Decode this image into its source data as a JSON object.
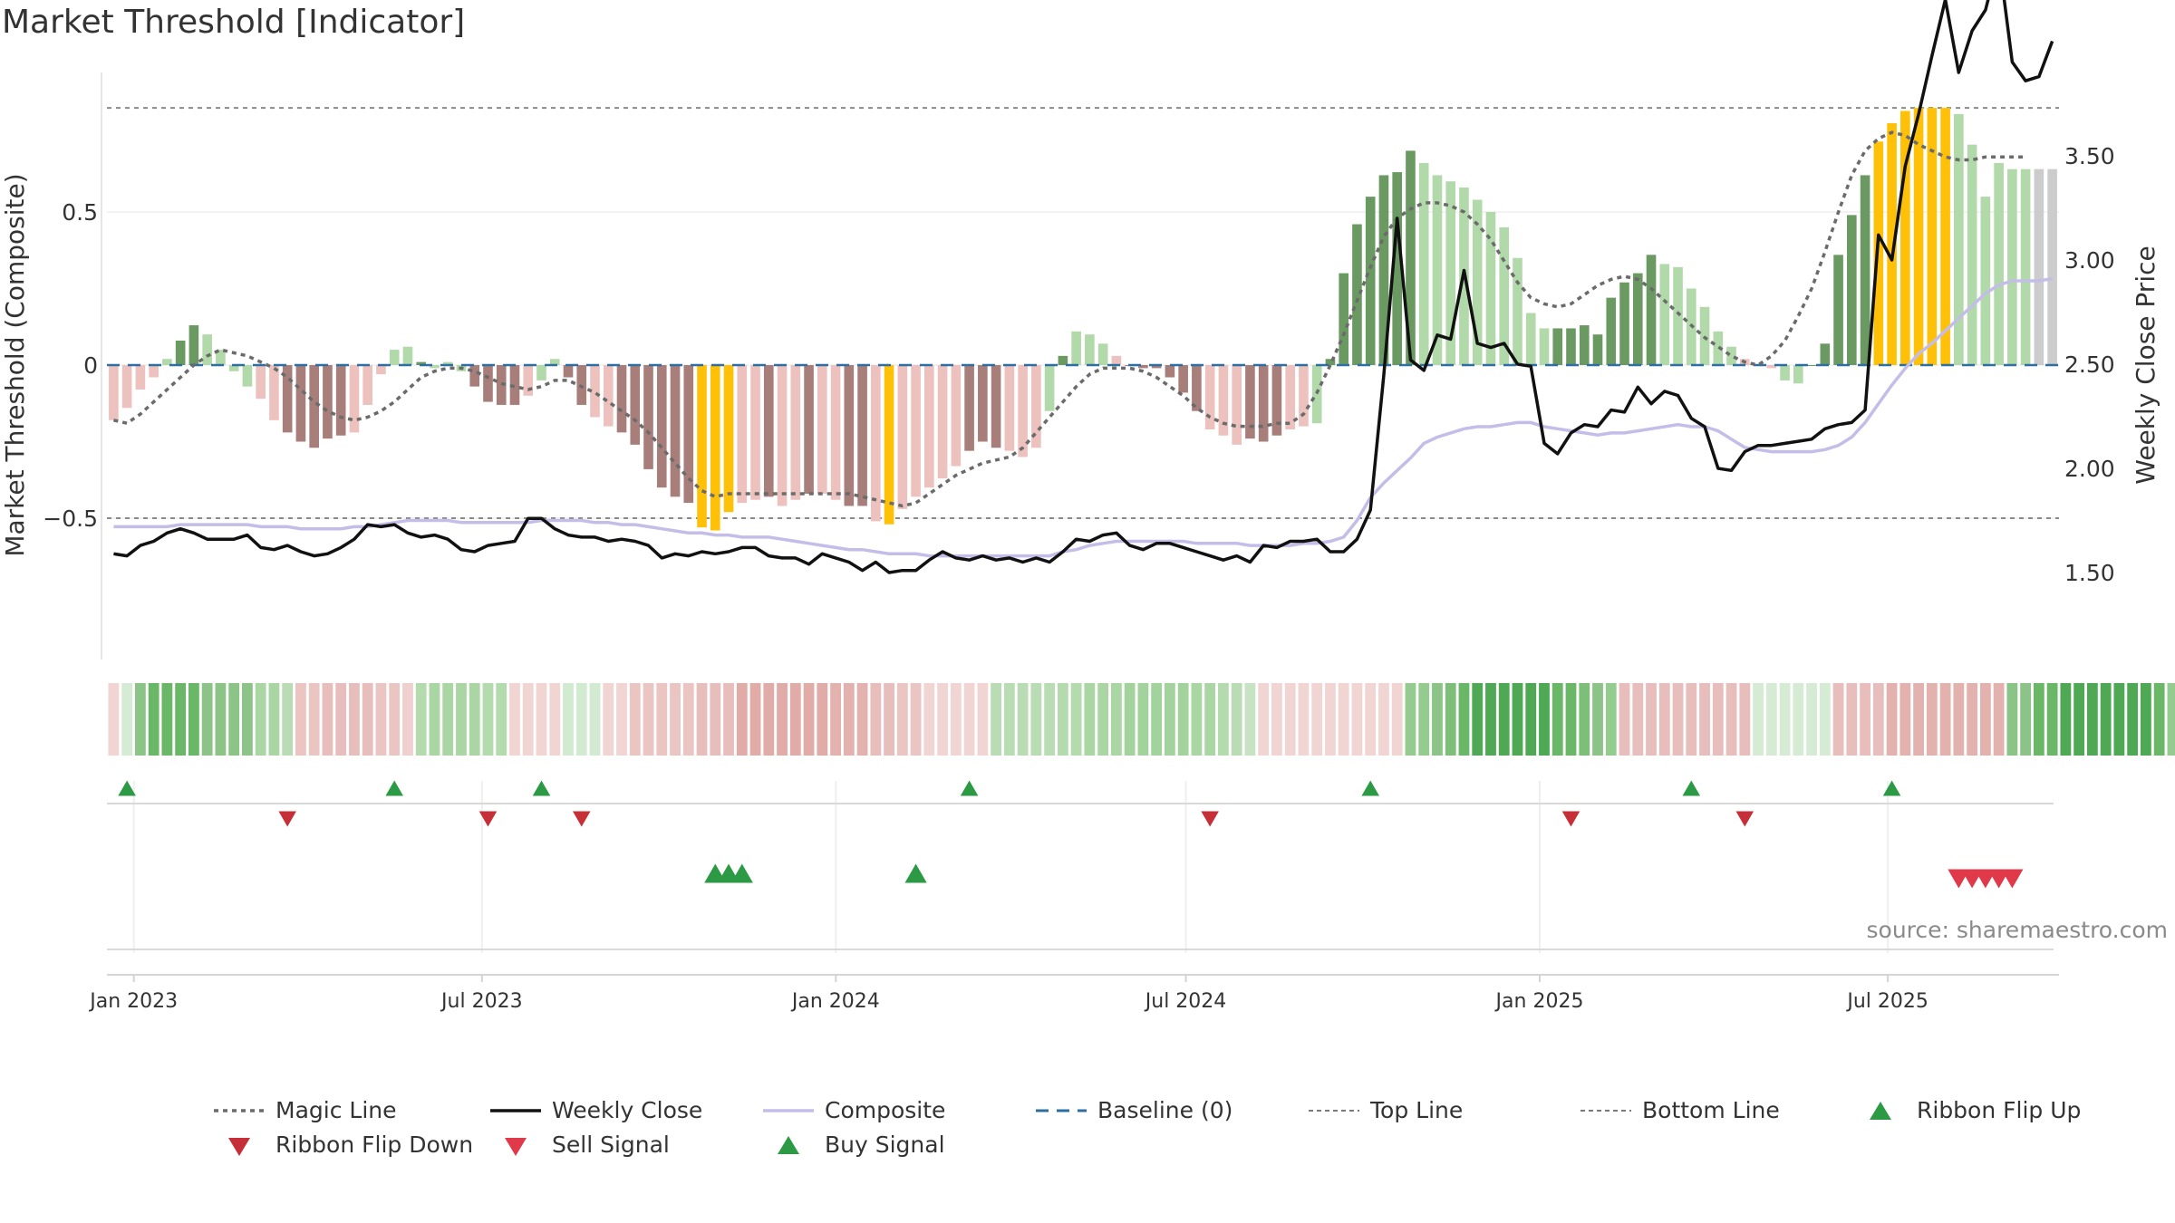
{
  "title": "Market Threshold [Indicator]",
  "source": "source: sharemaestro.com",
  "colors": {
    "bull_dark": "#6a9a62",
    "bull_light": "#b1d9a9",
    "bear_dark": "#a87e7b",
    "bear_light": "#ecc1be",
    "extreme": "#ffc107",
    "magic": "#6b6b6b",
    "close": "#111111",
    "composite": "#c3bde8",
    "baseline": "#2e6ea0",
    "buy": "#2c9a45",
    "sell": "#d23741"
  },
  "chart_data": {
    "type": "bar",
    "ylabel_left": "Market Threshold (Composite)",
    "ylabel_right": "Weekly Close Price",
    "y_left_ticks": [
      "0.5",
      "0",
      "−0.5"
    ],
    "y_left_tick_values": [
      0.5,
      0,
      -0.5
    ],
    "y_right_ticks": [
      "3.50",
      "3.00",
      "2.50",
      "2.00",
      "1.50"
    ],
    "y_right_tick_values": [
      3.5,
      3.0,
      2.5,
      2.0,
      1.5
    ],
    "ylim_left": [
      -0.95,
      0.95
    ],
    "ylim_right": [
      1.05,
      3.85
    ],
    "x_ticks": [
      "Jan 2023",
      "Jul 2023",
      "Jan 2024",
      "Jul 2024",
      "Jan 2025",
      "Jul 2025"
    ],
    "x_tick_dates": [
      "2023-01-01",
      "2023-07-01",
      "2024-01-01",
      "2024-07-01",
      "2025-01-01",
      "2025-07-01"
    ],
    "x_range": [
      "2022-12-18",
      "2025-09-28"
    ],
    "weeks": 146,
    "top_line": 0.84,
    "bottom_line": -0.5,
    "baseline": 0,
    "magic_line": [
      -0.18,
      -0.19,
      -0.16,
      -0.12,
      -0.08,
      -0.04,
      0.0,
      0.03,
      0.05,
      0.04,
      0.03,
      0.01,
      -0.01,
      -0.04,
      -0.08,
      -0.12,
      -0.15,
      -0.17,
      -0.18,
      -0.17,
      -0.15,
      -0.12,
      -0.08,
      -0.04,
      -0.02,
      -0.01,
      -0.01,
      -0.02,
      -0.04,
      -0.06,
      -0.07,
      -0.08,
      -0.07,
      -0.05,
      -0.05,
      -0.07,
      -0.09,
      -0.12,
      -0.15,
      -0.18,
      -0.22,
      -0.27,
      -0.32,
      -0.37,
      -0.41,
      -0.43,
      -0.42,
      -0.42,
      -0.42,
      -0.42,
      -0.42,
      -0.42,
      -0.42,
      -0.42,
      -0.42,
      -0.42,
      -0.43,
      -0.44,
      -0.45,
      -0.46,
      -0.45,
      -0.42,
      -0.39,
      -0.36,
      -0.34,
      -0.32,
      -0.31,
      -0.3,
      -0.27,
      -0.22,
      -0.17,
      -0.12,
      -0.07,
      -0.03,
      -0.01,
      -0.01,
      -0.01,
      -0.02,
      -0.04,
      -0.07,
      -0.1,
      -0.14,
      -0.17,
      -0.19,
      -0.2,
      -0.2,
      -0.2,
      -0.19,
      -0.19,
      -0.16,
      -0.09,
      0.0,
      0.1,
      0.21,
      0.32,
      0.42,
      0.48,
      0.51,
      0.53,
      0.53,
      0.52,
      0.5,
      0.46,
      0.41,
      0.34,
      0.27,
      0.22,
      0.2,
      0.19,
      0.2,
      0.23,
      0.26,
      0.28,
      0.29,
      0.28,
      0.25,
      0.21,
      0.17,
      0.13,
      0.09,
      0.06,
      0.03,
      0.01,
      0.0,
      0.03,
      0.08,
      0.16,
      0.25,
      0.37,
      0.5,
      0.62,
      0.7,
      0.74,
      0.76,
      0.75,
      0.72,
      0.7,
      0.68,
      0.67,
      0.67,
      0.68,
      0.68,
      0.68,
      0.68
    ],
    "composite": [
      -0.18,
      -0.14,
      -0.08,
      -0.04,
      0.02,
      0.08,
      0.13,
      0.1,
      0.05,
      -0.02,
      -0.07,
      -0.11,
      -0.18,
      -0.22,
      -0.25,
      -0.27,
      -0.24,
      -0.23,
      -0.22,
      -0.13,
      -0.03,
      0.05,
      0.06,
      0.01,
      -0.01,
      0.01,
      -0.02,
      -0.07,
      -0.12,
      -0.13,
      -0.13,
      -0.1,
      -0.05,
      0.02,
      -0.04,
      -0.13,
      -0.17,
      -0.2,
      -0.22,
      -0.26,
      -0.34,
      -0.4,
      -0.43,
      -0.45,
      -0.53,
      -0.54,
      -0.48,
      -0.45,
      -0.44,
      -0.43,
      -0.46,
      -0.44,
      -0.42,
      -0.42,
      -0.44,
      -0.46,
      -0.46,
      -0.51,
      -0.52,
      -0.47,
      -0.43,
      -0.4,
      -0.37,
      -0.33,
      -0.28,
      -0.25,
      -0.27,
      -0.28,
      -0.3,
      -0.27,
      -0.15,
      0.03,
      0.11,
      0.1,
      0.07,
      0.03,
      0.0,
      -0.01,
      -0.01,
      -0.04,
      -0.09,
      -0.15,
      -0.21,
      -0.23,
      -0.26,
      -0.24,
      -0.25,
      -0.23,
      -0.21,
      -0.2,
      -0.19,
      0.02,
      0.3,
      0.46,
      0.55,
      0.62,
      0.63,
      0.7,
      0.66,
      0.62,
      0.6,
      0.58,
      0.54,
      0.5,
      0.45,
      0.35,
      0.17,
      0.12,
      0.12,
      0.12,
      0.13,
      0.1,
      0.22,
      0.27,
      0.3,
      0.36,
      0.33,
      0.32,
      0.25,
      0.19,
      0.11,
      0.06,
      0.02,
      0.0,
      -0.01,
      -0.05,
      -0.06,
      0.0,
      0.07,
      0.36,
      0.49,
      0.62,
      0.73,
      0.79,
      0.83,
      0.84,
      0.84,
      0.84,
      0.82,
      0.72,
      0.55,
      0.66,
      0.64,
      0.64,
      0.64,
      0.64
    ],
    "bar_style": [
      "bear_light",
      "bear_light",
      "bear_light",
      "bear_light",
      "bull_light",
      "bull_dark",
      "bull_dark",
      "bull_light",
      "bull_light",
      "bull_light",
      "bull_light",
      "bear_light",
      "bear_light",
      "bear_dark",
      "bear_dark",
      "bear_dark",
      "bear_dark",
      "bear_dark",
      "bear_light",
      "bear_light",
      "bear_light",
      "bull_light",
      "bull_light",
      "bull_dark",
      "bull_light",
      "bull_light",
      "bull_light",
      "bear_dark",
      "bear_dark",
      "bear_dark",
      "bear_dark",
      "bear_light",
      "bull_light",
      "bull_light",
      "bear_dark",
      "bear_dark",
      "bear_light",
      "bear_light",
      "bear_dark",
      "bear_dark",
      "bear_dark",
      "bear_dark",
      "bear_dark",
      "bear_dark",
      "extreme",
      "extreme",
      "extreme",
      "bear_light",
      "bear_light",
      "bear_dark",
      "bear_light",
      "bear_light",
      "bear_dark",
      "bear_light",
      "bear_light",
      "bear_dark",
      "bear_dark",
      "bear_light",
      "extreme",
      "bear_light",
      "bear_light",
      "bear_light",
      "bear_light",
      "bear_light",
      "bear_dark",
      "bear_dark",
      "bear_dark",
      "bear_light",
      "bear_light",
      "bear_light",
      "bull_light",
      "bull_dark",
      "bull_light",
      "bull_light",
      "bull_light",
      "bear_light",
      "bear_dark",
      "bear_dark",
      "bear_dark",
      "bear_dark",
      "bear_dark",
      "bear_dark",
      "bear_light",
      "bear_light",
      "bear_light",
      "bear_dark",
      "bear_dark",
      "bear_dark",
      "bear_light",
      "bear_light",
      "bull_light",
      "bull_dark",
      "bull_dark",
      "bull_dark",
      "bull_dark",
      "bull_dark",
      "bull_dark",
      "bull_dark",
      "bull_light",
      "bull_light",
      "bull_light",
      "bull_light",
      "bull_light",
      "bull_light",
      "bull_light",
      "bull_light",
      "bull_light",
      "bull_light",
      "bull_dark",
      "bull_dark",
      "bull_dark",
      "bull_dark",
      "bull_dark",
      "bull_dark",
      "bull_dark",
      "bull_dark",
      "bull_light",
      "bull_light",
      "bull_light",
      "bull_light",
      "bull_light",
      "bull_light",
      "bear_light",
      "bear_dark",
      "bear_light",
      "bull_light",
      "bull_light",
      "bull_dark",
      "bull_dark",
      "bull_dark",
      "bull_dark",
      "bull_dark",
      "extreme",
      "extreme",
      "extreme",
      "extreme",
      "extreme",
      "extreme",
      "bull_light",
      "bull_light",
      "bull_light",
      "bull_light",
      "bull_light",
      "bull_light"
    ],
    "weekly_close": [
      1.59,
      1.58,
      1.63,
      1.65,
      1.69,
      1.71,
      1.69,
      1.66,
      1.66,
      1.66,
      1.68,
      1.62,
      1.61,
      1.63,
      1.6,
      1.58,
      1.59,
      1.62,
      1.66,
      1.73,
      1.72,
      1.73,
      1.69,
      1.67,
      1.68,
      1.66,
      1.61,
      1.6,
      1.63,
      1.64,
      1.65,
      1.76,
      1.76,
      1.71,
      1.68,
      1.67,
      1.67,
      1.65,
      1.66,
      1.65,
      1.63,
      1.57,
      1.59,
      1.58,
      1.6,
      1.59,
      1.6,
      1.62,
      1.62,
      1.58,
      1.57,
      1.57,
      1.54,
      1.59,
      1.57,
      1.55,
      1.51,
      1.55,
      1.5,
      1.51,
      1.51,
      1.56,
      1.6,
      1.57,
      1.56,
      1.58,
      1.56,
      1.57,
      1.55,
      1.57,
      1.55,
      1.6,
      1.66,
      1.65,
      1.68,
      1.69,
      1.63,
      1.61,
      1.64,
      1.64,
      1.62,
      1.6,
      1.58,
      1.56,
      1.58,
      1.55,
      1.63,
      1.62,
      1.65,
      1.65,
      1.66,
      1.6,
      1.6,
      1.66,
      1.8,
      2.45,
      3.2,
      2.52,
      2.47,
      2.64,
      2.62,
      2.95,
      2.6,
      2.58,
      2.6,
      2.5,
      2.49,
      2.12,
      2.07,
      2.17,
      2.21,
      2.2,
      2.28,
      2.27,
      2.39,
      2.31,
      2.37,
      2.35,
      2.24,
      2.2,
      2.0,
      1.99,
      2.08,
      2.11,
      2.11,
      2.12,
      2.13,
      2.14,
      2.19,
      2.21,
      2.22,
      2.28,
      3.12,
      3.0,
      3.45,
      3.7,
      3.98,
      4.25,
      3.9,
      4.1,
      4.2,
      4.45,
      3.95,
      3.86,
      3.88,
      4.05
    ],
    "composite_price": [
      1.72,
      1.72,
      1.72,
      1.72,
      1.72,
      1.73,
      1.73,
      1.73,
      1.73,
      1.73,
      1.73,
      1.72,
      1.72,
      1.72,
      1.71,
      1.71,
      1.71,
      1.71,
      1.72,
      1.72,
      1.73,
      1.74,
      1.75,
      1.75,
      1.75,
      1.75,
      1.74,
      1.74,
      1.74,
      1.74,
      1.74,
      1.74,
      1.75,
      1.75,
      1.75,
      1.75,
      1.74,
      1.74,
      1.73,
      1.73,
      1.72,
      1.71,
      1.7,
      1.69,
      1.69,
      1.68,
      1.68,
      1.67,
      1.67,
      1.67,
      1.66,
      1.65,
      1.64,
      1.63,
      1.62,
      1.61,
      1.61,
      1.6,
      1.59,
      1.59,
      1.59,
      1.58,
      1.58,
      1.58,
      1.58,
      1.58,
      1.58,
      1.58,
      1.58,
      1.58,
      1.58,
      1.6,
      1.61,
      1.63,
      1.64,
      1.65,
      1.65,
      1.65,
      1.65,
      1.65,
      1.65,
      1.64,
      1.64,
      1.64,
      1.64,
      1.63,
      1.63,
      1.63,
      1.63,
      1.64,
      1.64,
      1.65,
      1.67,
      1.75,
      1.86,
      1.93,
      1.99,
      2.05,
      2.12,
      2.15,
      2.17,
      2.19,
      2.2,
      2.2,
      2.21,
      2.22,
      2.22,
      2.2,
      2.19,
      2.18,
      2.17,
      2.16,
      2.17,
      2.17,
      2.18,
      2.19,
      2.2,
      2.21,
      2.2,
      2.2,
      2.18,
      2.14,
      2.1,
      2.09,
      2.08,
      2.08,
      2.08,
      2.08,
      2.09,
      2.11,
      2.15,
      2.22,
      2.31,
      2.4,
      2.48,
      2.55,
      2.6,
      2.66,
      2.72,
      2.78,
      2.84,
      2.88,
      2.9,
      2.9,
      2.9,
      2.91
    ],
    "ribbon": [
      "#f1d5d3",
      "#d6ebd3",
      "#8cc487",
      "#6ab768",
      "#6ab768",
      "#6ab768",
      "#6ab768",
      "#8cc487",
      "#8cc487",
      "#8cc487",
      "#8cc487",
      "#a9d6a3",
      "#a9d6a3",
      "#b9dcb4",
      "#ebc5c2",
      "#ebc5c2",
      "#e7bebb",
      "#e7bebb",
      "#e7bebb",
      "#e7bebb",
      "#ebc5c2",
      "#ebc5c2",
      "#f0d0ce",
      "#b3dbae",
      "#a9d6a3",
      "#a9d6a3",
      "#a9d6a3",
      "#a9d6a3",
      "#b3dbae",
      "#b3dbae",
      "#f1d5d3",
      "#f1d5d3",
      "#f1d5d3",
      "#f1d5d3",
      "#d1ead0",
      "#d1ead0",
      "#d1ead0",
      "#f1d5d3",
      "#f1d5d3",
      "#ebc5c2",
      "#ebc5c2",
      "#ebc5c2",
      "#ebc5c2",
      "#ebc5c2",
      "#e7bebb",
      "#e7bebb",
      "#e7bebb",
      "#e1aba7",
      "#e1aba7",
      "#e1aba7",
      "#e1aba7",
      "#e1aba7",
      "#e1aba7",
      "#e1aba7",
      "#e3b2ae",
      "#e3b2ae",
      "#e3b2ae",
      "#e7bebb",
      "#e7bebb",
      "#ebc5c2",
      "#ebc5c2",
      "#f1d5d3",
      "#f1d5d3",
      "#f1d5d3",
      "#f1d5d3",
      "#f1d5d3",
      "#b9dcb4",
      "#b9dcb4",
      "#b9dcb4",
      "#b9dcb4",
      "#b9dcb4",
      "#b3dbae",
      "#b3dbae",
      "#a9d6a3",
      "#a9d6a3",
      "#a9d6a3",
      "#a2d39c",
      "#a2d39c",
      "#a2d39c",
      "#a2d39c",
      "#a2d39c",
      "#a9d6a3",
      "#a9d6a3",
      "#b3dbae",
      "#b9dcb4",
      "#c7e3c3",
      "#f1d5d3",
      "#f1d5d3",
      "#f1d5d3",
      "#f1d5d3",
      "#f1d5d3",
      "#f1d5d3",
      "#f1d5d3",
      "#f1d5d3",
      "#f1d5d3",
      "#f1d5d3",
      "#f1d5d3",
      "#94cb8f",
      "#94cb8f",
      "#8cc487",
      "#7dbe78",
      "#6ab768",
      "#4fa854",
      "#4fa854",
      "#4fa854",
      "#4fa854",
      "#4fa854",
      "#4fa854",
      "#6ab768",
      "#6ab768",
      "#7dbe78",
      "#8cc487",
      "#94cb8f",
      "#e7bebb",
      "#e7bebb",
      "#e7bebb",
      "#e7bebb",
      "#e7bebb",
      "#e7bebb",
      "#e7bebb",
      "#e7bebb",
      "#e7bebb",
      "#e7bebb",
      "#d6ebd3",
      "#d6ebd3",
      "#d6ebd3",
      "#d6ebd3",
      "#d6ebd3",
      "#d6ebd3",
      "#e7bebb",
      "#e7bebb",
      "#e7bebb",
      "#e7bebb",
      "#e3b2ae",
      "#e3b2ae",
      "#e3b2ae",
      "#e3b2ae",
      "#e3b2ae",
      "#e3b2ae",
      "#e3b2ae",
      "#e3b2ae",
      "#e3b2ae",
      "#8cc487",
      "#8cc487",
      "#6ab768",
      "#6ab768",
      "#4fa854",
      "#4fa854",
      "#4fa854",
      "#4fa854",
      "#4fa854",
      "#4fa854",
      "#4fa854",
      "#6ab768",
      "#94cb8f",
      "#a2d39c",
      "#a9d6a3"
    ],
    "ribbon_flip_up_weeks": [
      1,
      21,
      32,
      64,
      94,
      118,
      133
    ],
    "ribbon_flip_down_weeks": [
      13,
      28,
      35,
      82,
      109,
      122
    ],
    "buy_signal_weeks": [
      45,
      46,
      47,
      60
    ],
    "sell_signal_weeks": [
      138,
      139,
      140,
      141,
      142
    ]
  },
  "legend": [
    {
      "label": "Magic Line",
      "marker": "dotted",
      "color": "#6b6b6b"
    },
    {
      "label": "Weekly Close",
      "marker": "solid",
      "color": "#111111"
    },
    {
      "label": "Composite",
      "marker": "solid-light",
      "color": "#c3bde8"
    },
    {
      "label": "Baseline (0)",
      "marker": "dashed",
      "color": "#2e6ea0"
    },
    {
      "label": "Top Line",
      "marker": "dotted-thin",
      "color": "#7a7a7a"
    },
    {
      "label": "Bottom Line",
      "marker": "dotted-thin",
      "color": "#7a7a7a"
    },
    {
      "label": "Ribbon Flip Up",
      "marker": "triangle-up",
      "color": "#2c9a45"
    },
    {
      "label": "Ribbon Flip Down",
      "marker": "triangle-down",
      "color": "#c62f38"
    },
    {
      "label": "Sell Signal",
      "marker": "triangle-down",
      "color": "#e03a4a"
    },
    {
      "label": "Buy Signal",
      "marker": "triangle-up",
      "color": "#2c9a45"
    }
  ]
}
